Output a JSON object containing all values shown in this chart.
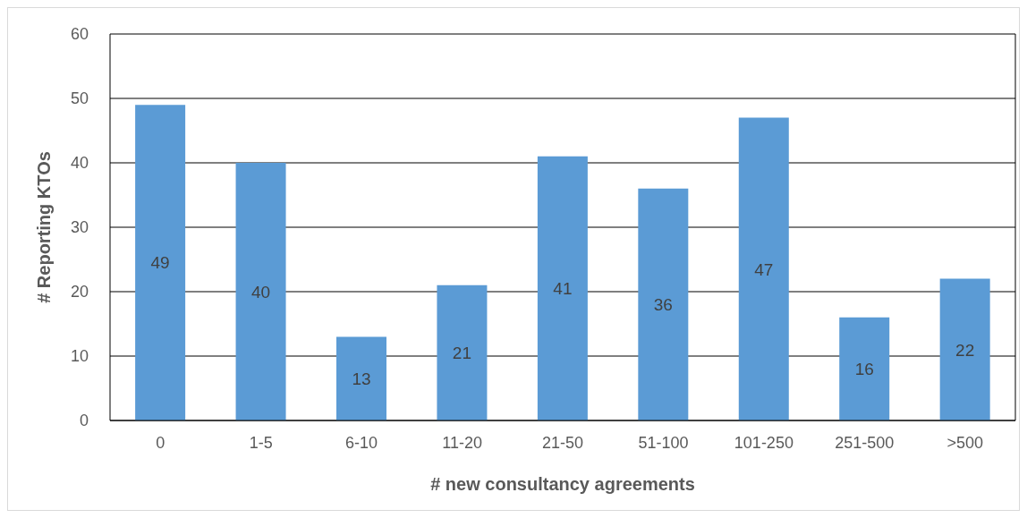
{
  "chart_data": {
    "type": "bar",
    "xlabel": "# new consultancy agreements",
    "ylabel": "# Reporting KTOs",
    "categories": [
      "0",
      "1-5",
      "6-10",
      "11-20",
      "21-50",
      "51-100",
      "101-250",
      "251-500",
      ">500"
    ],
    "values": [
      49,
      40,
      13,
      21,
      41,
      36,
      47,
      16,
      22
    ],
    "color": "#5b9bd5",
    "ylim": [
      0,
      60
    ],
    "yticks": [
      0,
      10,
      20,
      30,
      40,
      50,
      60
    ],
    "grid": "y",
    "data_labels": true
  }
}
